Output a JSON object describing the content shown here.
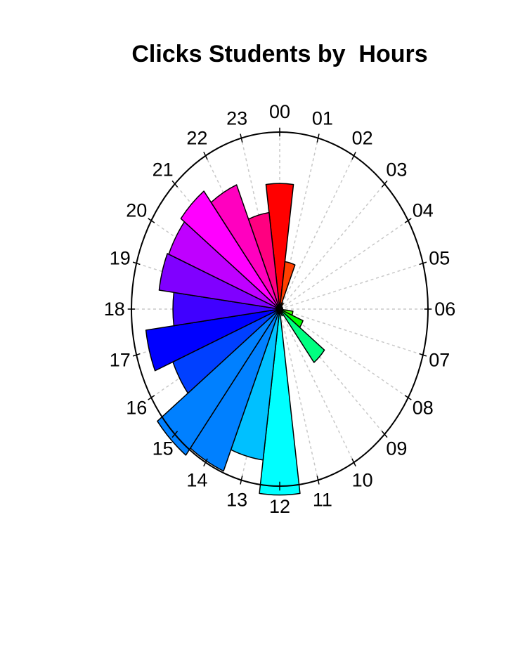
{
  "chart_data": {
    "type": "polar-bar",
    "title": "Clicks Students by  Hours",
    "categories": [
      "00",
      "01",
      "02",
      "03",
      "04",
      "05",
      "06",
      "07",
      "08",
      "09",
      "10",
      "11",
      "12",
      "13",
      "14",
      "15",
      "16",
      "17",
      "18",
      "19",
      "20",
      "21",
      "22",
      "23"
    ],
    "values": [
      0.71,
      0.27,
      0.04,
      0.02,
      0.02,
      0.02,
      0.02,
      0.09,
      0.17,
      0.38,
      0.04,
      0.02,
      1.05,
      0.86,
      0.99,
      1.04,
      0.78,
      0.91,
      0.72,
      0.82,
      0.81,
      0.84,
      0.76,
      0.55
    ],
    "colors": [
      "#ff0000",
      "#ff4000",
      "#ff8000",
      "#ffbf00",
      "#ffff00",
      "#bfff00",
      "#80ff00",
      "#40ff00",
      "#00ff00",
      "#00ff80",
      "#00ffc0",
      "#00ffff",
      "#00ffff",
      "#00c0ff",
      "#0080ff",
      "#0080ff",
      "#0040ff",
      "#0000ff",
      "#4000ff",
      "#8000ff",
      "#bf00ff",
      "#ff00ff",
      "#ff00bf",
      "#ff0080"
    ],
    "rlim": [
      0,
      1
    ],
    "grid": true
  }
}
